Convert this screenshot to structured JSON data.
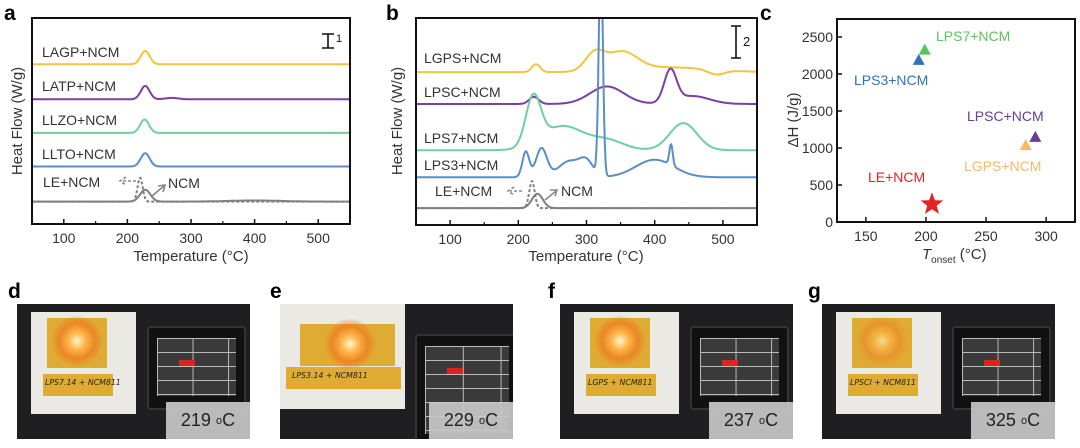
{
  "panels": {
    "a": "a",
    "b": "b",
    "c": "c",
    "d": "d",
    "e": "e",
    "f": "f",
    "g": "g"
  },
  "chart_data": [
    {
      "type": "line",
      "panel": "a",
      "xlabel": "Temperature (°C)",
      "ylabel": "Heat Flow (W/g)",
      "xlim": [
        50,
        550
      ],
      "ylim": [
        0,
        14.7
      ],
      "xticks": [
        100,
        200,
        300,
        400,
        500
      ],
      "scale_bar": "1",
      "scale_bar_value": 1,
      "series": [
        {
          "name": "LAGP+NCM",
          "color": "#f2c53d",
          "offset": 11.4,
          "peaks": [
            [
              228,
              0.95,
              7
            ]
          ]
        },
        {
          "name": "LATP+NCM",
          "color": "#7d3fa6",
          "offset": 8.9,
          "peaks": [
            [
              228,
              0.95,
              7
            ],
            [
              270,
              0.1,
              10
            ]
          ]
        },
        {
          "name": "LLZO+NCM",
          "color": "#6fcf9f",
          "offset": 6.5,
          "peaks": [
            [
              227,
              0.95,
              7
            ]
          ]
        },
        {
          "name": "LLTO+NCM",
          "color": "#5b8ec8",
          "offset": 4.1,
          "peaks": [
            [
              228,
              0.95,
              7
            ]
          ]
        },
        {
          "name": "LE+NCM",
          "color": "#808080",
          "dashed": true,
          "offset": 1.6,
          "peaks": [
            [
              220,
              1.7,
              4
            ]
          ]
        },
        {
          "name": "NCM",
          "color": "#808080",
          "offset": 1.6,
          "peaks": [
            [
              228,
              0.85,
              8
            ],
            [
              400,
              0.08,
              40
            ]
          ]
        }
      ]
    },
    {
      "type": "line",
      "panel": "b",
      "xlabel": "Temperature (°C)",
      "ylabel": "Heat Flow (W/g)",
      "xlim": [
        50,
        550
      ],
      "ylim": [
        0,
        13
      ],
      "xticks": [
        100,
        200,
        300,
        400,
        500
      ],
      "scale_bar": "2",
      "scale_bar_value": 2,
      "series": [
        {
          "name": "LGPS+NCM",
          "color": "#f2c53d",
          "offset": 9.6,
          "peaks": [
            [
              226,
              0.5,
              6
            ],
            [
              312,
              1.1,
              14
            ],
            [
              352,
              1.15,
              22
            ],
            [
              420,
              0.3,
              60
            ],
            [
              490,
              -0.3,
              12
            ]
          ]
        },
        {
          "name": "LPSC+NCM",
          "color": "#7d3fa6",
          "offset": 7.6,
          "peaks": [
            [
              223,
              0.45,
              7
            ],
            [
              330,
              1.1,
              25
            ],
            [
              423,
              2.0,
              9
            ],
            [
              455,
              0.5,
              25
            ]
          ]
        },
        {
          "name": "LPS7+NCM",
          "color": "#6fcf9f",
          "offset": 4.7,
          "peaks": [
            [
              222,
              3.0,
              11
            ],
            [
              265,
              1.5,
              30
            ],
            [
              330,
              0.6,
              25
            ],
            [
              442,
              1.7,
              20
            ]
          ]
        },
        {
          "name": "LPS3+NCM",
          "color": "#5b8ec8",
          "offset": 3.0,
          "peaks": [
            [
              211,
              1.6,
              5
            ],
            [
              234,
              1.8,
              8
            ],
            [
              275,
              1.0,
              16
            ],
            [
              300,
              0.9,
              10
            ],
            [
              321,
              14,
              3
            ],
            [
              400,
              1.1,
              28
            ],
            [
              424,
              1.3,
              2.5
            ]
          ]
        },
        {
          "name": "LE+NCM",
          "color": "#808080",
          "dashed": true,
          "offset": 1.06,
          "peaks": [
            [
              220,
              1.7,
              4
            ]
          ]
        },
        {
          "name": "NCM",
          "color": "#808080",
          "offset": 1.06,
          "peaks": [
            [
              228,
              0.9,
              8
            ]
          ]
        }
      ]
    },
    {
      "type": "scatter",
      "panel": "c",
      "xlabel": "T",
      "xlabel_sub": "onset",
      "xlabel_unit": " (°C)",
      "ylabel": "ΔH (J/g)",
      "xlim": [
        126,
        324
      ],
      "ylim": [
        0,
        2743
      ],
      "xticks": [
        150,
        200,
        250,
        300
      ],
      "yticks": [
        0,
        500,
        1000,
        1500,
        2000,
        2500
      ],
      "points": [
        {
          "name": "LPS7+NCM",
          "x": 199,
          "y": 2330,
          "marker": "triangle",
          "color": "#5cc45c"
        },
        {
          "name": "LPS3+NCM",
          "x": 194,
          "y": 2190,
          "marker": "triangle",
          "color": "#2e74b5"
        },
        {
          "name": "LPSC+NCM",
          "x": 291,
          "y": 1150,
          "marker": "triangle",
          "color": "#6a3d9a"
        },
        {
          "name": "LGPS+NCM",
          "x": 283,
          "y": 1040,
          "marker": "triangle",
          "color": "#f5b96b"
        },
        {
          "name": "LE+NCM",
          "x": 205,
          "y": 240,
          "marker": "star",
          "color": "#e02525"
        }
      ]
    }
  ],
  "photos": [
    {
      "panel": "d",
      "sample_label": "LPS7.14 + NCM811",
      "temperature": "219",
      "unit": "C",
      "degree": "o"
    },
    {
      "panel": "e",
      "sample_label": "LPS3.14 + NCM811",
      "temperature": "229",
      "unit": "C",
      "degree": "o"
    },
    {
      "panel": "f",
      "sample_label": "LGPS + NCM811",
      "temperature": "237",
      "unit": "C",
      "degree": "o"
    },
    {
      "panel": "g",
      "sample_label": "LPSCl + NCM811",
      "temperature": "325",
      "unit": "C",
      "degree": "o"
    }
  ]
}
